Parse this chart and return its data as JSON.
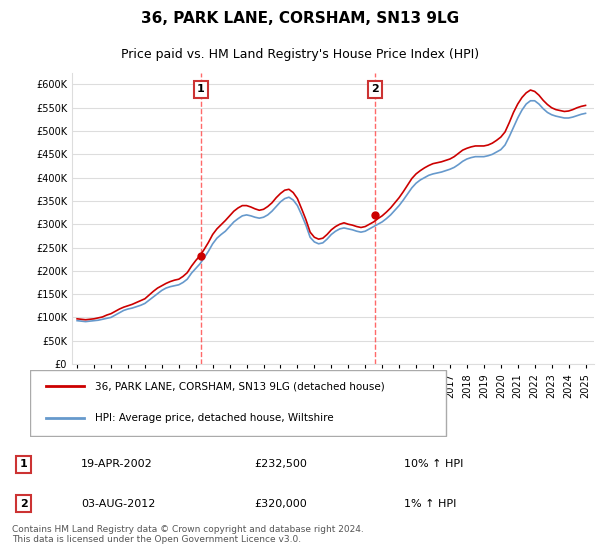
{
  "title": "36, PARK LANE, CORSHAM, SN13 9LG",
  "subtitle": "Price paid vs. HM Land Registry's House Price Index (HPI)",
  "ylabel_ticks": [
    0,
    50000,
    100000,
    150000,
    200000,
    250000,
    300000,
    350000,
    400000,
    450000,
    500000,
    550000,
    600000
  ],
  "ylim": [
    0,
    625000
  ],
  "xlim_start": 1995.0,
  "xlim_end": 2025.5,
  "sale1_date": 2002.3,
  "sale1_price": 232500,
  "sale1_label": "1",
  "sale1_text": "19-APR-2002    £232,500    10% ↑ HPI",
  "sale2_date": 2012.58,
  "sale2_price": 320000,
  "sale2_label": "2",
  "sale2_text": "03-AUG-2012    £320,000    1% ↑ HPI",
  "legend_line1": "36, PARK LANE, CORSHAM, SN13 9LG (detached house)",
  "legend_line2": "HPI: Average price, detached house, Wiltshire",
  "footer": "Contains HM Land Registry data © Crown copyright and database right 2024.\nThis data is licensed under the Open Government Licence v3.0.",
  "line_color_property": "#cc0000",
  "line_color_hpi": "#6699cc",
  "background_color": "#ffffff",
  "grid_color": "#dddddd",
  "dashed_line_color": "#ff4444",
  "hpi_data": {
    "years": [
      1995.0,
      1995.25,
      1995.5,
      1995.75,
      1996.0,
      1996.25,
      1996.5,
      1996.75,
      1997.0,
      1997.25,
      1997.5,
      1997.75,
      1998.0,
      1998.25,
      1998.5,
      1998.75,
      1999.0,
      1999.25,
      1999.5,
      1999.75,
      2000.0,
      2000.25,
      2000.5,
      2000.75,
      2001.0,
      2001.25,
      2001.5,
      2001.75,
      2002.0,
      2002.25,
      2002.5,
      2002.75,
      2003.0,
      2003.25,
      2003.5,
      2003.75,
      2004.0,
      2004.25,
      2004.5,
      2004.75,
      2005.0,
      2005.25,
      2005.5,
      2005.75,
      2006.0,
      2006.25,
      2006.5,
      2006.75,
      2007.0,
      2007.25,
      2007.5,
      2007.75,
      2008.0,
      2008.25,
      2008.5,
      2008.75,
      2009.0,
      2009.25,
      2009.5,
      2009.75,
      2010.0,
      2010.25,
      2010.5,
      2010.75,
      2011.0,
      2011.25,
      2011.5,
      2011.75,
      2012.0,
      2012.25,
      2012.5,
      2012.75,
      2013.0,
      2013.25,
      2013.5,
      2013.75,
      2014.0,
      2014.25,
      2014.5,
      2014.75,
      2015.0,
      2015.25,
      2015.5,
      2015.75,
      2016.0,
      2016.25,
      2016.5,
      2016.75,
      2017.0,
      2017.25,
      2017.5,
      2017.75,
      2018.0,
      2018.25,
      2018.5,
      2018.75,
      2019.0,
      2019.25,
      2019.5,
      2019.75,
      2020.0,
      2020.25,
      2020.5,
      2020.75,
      2021.0,
      2021.25,
      2021.5,
      2021.75,
      2022.0,
      2022.25,
      2022.5,
      2022.75,
      2023.0,
      2023.25,
      2023.5,
      2023.75,
      2024.0,
      2024.25,
      2024.5,
      2024.75,
      2025.0
    ],
    "values": [
      93000,
      92000,
      91000,
      92000,
      93000,
      94000,
      96000,
      98000,
      100000,
      105000,
      110000,
      115000,
      118000,
      120000,
      123000,
      126000,
      130000,
      137000,
      144000,
      151000,
      158000,
      163000,
      166000,
      168000,
      170000,
      175000,
      182000,
      195000,
      205000,
      215000,
      228000,
      242000,
      258000,
      270000,
      278000,
      285000,
      295000,
      305000,
      312000,
      318000,
      320000,
      318000,
      315000,
      313000,
      315000,
      320000,
      328000,
      338000,
      348000,
      355000,
      358000,
      352000,
      340000,
      320000,
      298000,
      272000,
      262000,
      258000,
      260000,
      268000,
      278000,
      285000,
      290000,
      292000,
      290000,
      288000,
      285000,
      283000,
      285000,
      290000,
      295000,
      300000,
      305000,
      312000,
      320000,
      330000,
      340000,
      352000,
      365000,
      378000,
      388000,
      395000,
      400000,
      405000,
      408000,
      410000,
      412000,
      415000,
      418000,
      422000,
      428000,
      435000,
      440000,
      443000,
      445000,
      445000,
      445000,
      447000,
      450000,
      455000,
      460000,
      470000,
      488000,
      508000,
      528000,
      545000,
      558000,
      565000,
      565000,
      558000,
      548000,
      540000,
      535000,
      532000,
      530000,
      528000,
      528000,
      530000,
      533000,
      536000,
      538000
    ]
  },
  "property_data": {
    "years": [
      1995.0,
      1995.25,
      1995.5,
      1995.75,
      1996.0,
      1996.25,
      1996.5,
      1996.75,
      1997.0,
      1997.25,
      1997.5,
      1997.75,
      1998.0,
      1998.25,
      1998.5,
      1998.75,
      1999.0,
      1999.25,
      1999.5,
      1999.75,
      2000.0,
      2000.25,
      2000.5,
      2000.75,
      2001.0,
      2001.25,
      2001.5,
      2001.75,
      2002.0,
      2002.25,
      2002.5,
      2002.75,
      2003.0,
      2003.25,
      2003.5,
      2003.75,
      2004.0,
      2004.25,
      2004.5,
      2004.75,
      2005.0,
      2005.25,
      2005.5,
      2005.75,
      2006.0,
      2006.25,
      2006.5,
      2006.75,
      2007.0,
      2007.25,
      2007.5,
      2007.75,
      2008.0,
      2008.25,
      2008.5,
      2008.75,
      2009.0,
      2009.25,
      2009.5,
      2009.75,
      2010.0,
      2010.25,
      2010.5,
      2010.75,
      2011.0,
      2011.25,
      2011.5,
      2011.75,
      2012.0,
      2012.25,
      2012.5,
      2012.75,
      2013.0,
      2013.25,
      2013.5,
      2013.75,
      2014.0,
      2014.25,
      2014.5,
      2014.75,
      2015.0,
      2015.25,
      2015.5,
      2015.75,
      2016.0,
      2016.25,
      2016.5,
      2016.75,
      2017.0,
      2017.25,
      2017.5,
      2017.75,
      2018.0,
      2018.25,
      2018.5,
      2018.75,
      2019.0,
      2019.25,
      2019.5,
      2019.75,
      2020.0,
      2020.25,
      2020.5,
      2020.75,
      2021.0,
      2021.25,
      2021.5,
      2021.75,
      2022.0,
      2022.25,
      2022.5,
      2022.75,
      2023.0,
      2023.25,
      2023.5,
      2023.75,
      2024.0,
      2024.25,
      2024.5,
      2024.75,
      2025.0
    ],
    "values": [
      97000,
      96000,
      95000,
      96000,
      97000,
      99000,
      101000,
      105000,
      108000,
      113000,
      118000,
      122000,
      125000,
      128000,
      132000,
      136000,
      140000,
      148000,
      156000,
      163000,
      168000,
      173000,
      177000,
      180000,
      182000,
      188000,
      196000,
      210000,
      222000,
      232500,
      246000,
      261000,
      278000,
      290000,
      299000,
      308000,
      318000,
      328000,
      335000,
      340000,
      340000,
      337000,
      333000,
      330000,
      332000,
      338000,
      346000,
      357000,
      366000,
      373000,
      375000,
      368000,
      355000,
      333000,
      310000,
      283000,
      272000,
      268000,
      270000,
      278000,
      288000,
      295000,
      300000,
      303000,
      300000,
      298000,
      295000,
      293000,
      295000,
      300000,
      305000,
      312000,
      318000,
      326000,
      335000,
      346000,
      357000,
      370000,
      384000,
      398000,
      408000,
      415000,
      421000,
      426000,
      430000,
      432000,
      434000,
      437000,
      440000,
      445000,
      452000,
      459000,
      463000,
      466000,
      468000,
      468000,
      468000,
      470000,
      474000,
      480000,
      487000,
      498000,
      518000,
      540000,
      558000,
      572000,
      582000,
      588000,
      585000,
      577000,
      566000,
      557000,
      550000,
      546000,
      544000,
      542000,
      543000,
      546000,
      550000,
      553000,
      555000
    ]
  },
  "xticks": [
    1995,
    1996,
    1997,
    1998,
    1999,
    2000,
    2001,
    2002,
    2003,
    2004,
    2005,
    2006,
    2007,
    2008,
    2009,
    2010,
    2011,
    2012,
    2013,
    2014,
    2015,
    2016,
    2017,
    2018,
    2019,
    2020,
    2021,
    2022,
    2023,
    2024,
    2025
  ]
}
